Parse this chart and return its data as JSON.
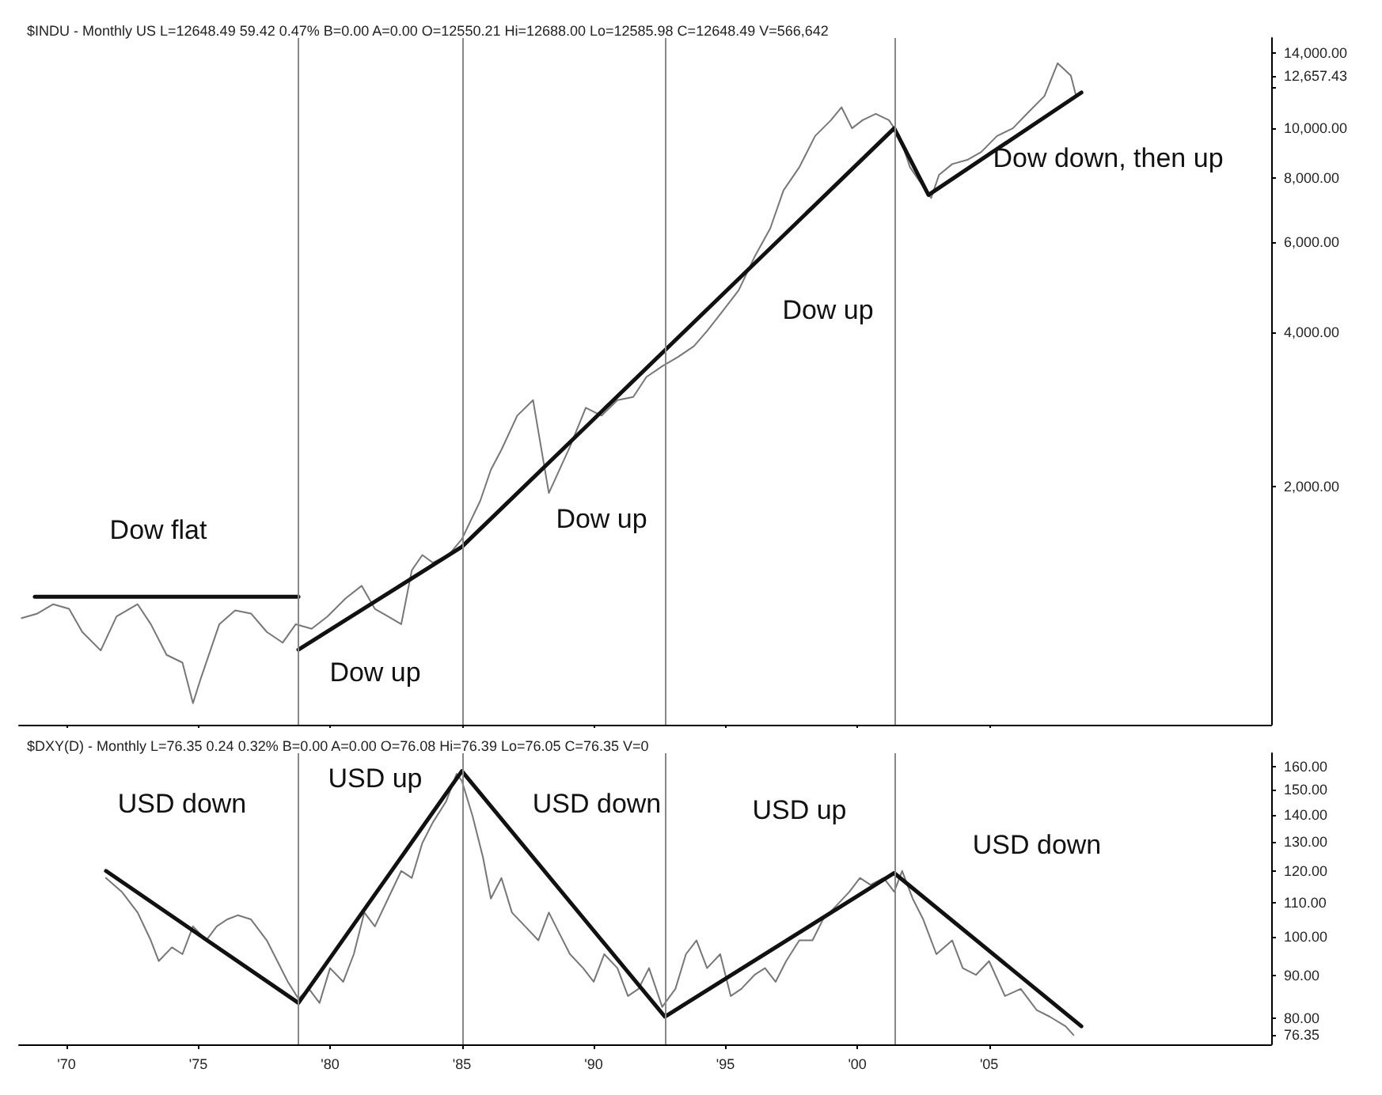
{
  "chart_data": [
    {
      "type": "line",
      "title": "$INDU - Monthly US L=12648.49 59.42 0.47% B=0.00 A=0.00 O=12550.21 Hi=12688.00 Lo=12585.98 C=12648.49 V=566,642",
      "log": "y",
      "grid": false,
      "marker": "none",
      "line_style": "solid",
      "tick_labels": "y",
      "xlim": [
        1968.2,
        2015.7
      ],
      "xticks": [
        {
          "value": 1970,
          "label": null
        },
        {
          "value": 1975,
          "label": null
        },
        {
          "value": 1980,
          "label": null
        },
        {
          "value": 1985,
          "label": null
        },
        {
          "value": 1990,
          "label": null
        },
        {
          "value": 1995,
          "label": null
        },
        {
          "value": 2000,
          "label": null
        },
        {
          "value": 2005,
          "label": null
        }
      ],
      "ylim": [
        687,
        15000
      ],
      "yticks": [
        {
          "value": 2000,
          "label": "2,000.00"
        },
        {
          "value": 4000,
          "label": "4,000.00"
        },
        {
          "value": 6000,
          "label": "6,000.00"
        },
        {
          "value": 8000,
          "label": "8,000.00"
        },
        {
          "value": 10000,
          "label": "10,000.00"
        },
        {
          "value": 12000,
          "label": null
        },
        {
          "value": 12657.43,
          "label": "12,657.43"
        },
        {
          "value": 14000,
          "label": "14,000.00"
        }
      ],
      "series": [
        {
          "color": "#777777",
          "x": [
            1968.3,
            1968.9,
            1969.5,
            1970.1,
            1970.6,
            1971.3,
            1971.9,
            1972.7,
            1973.2,
            1973.8,
            1974.4,
            1974.8,
            1975.1,
            1975.8,
            1976.4,
            1977.0,
            1977.6,
            1978.2,
            1978.7,
            1979.3,
            1979.9,
            1980.6,
            1981.2,
            1981.7,
            1982.2,
            1982.7,
            1983.1,
            1983.5,
            1983.9,
            1984.5,
            1985.0,
            1985.7,
            1986.1,
            1986.5,
            1987.1,
            1987.7,
            1987.9,
            1988.3,
            1988.7,
            1989.1,
            1989.7,
            1990.3,
            1990.9,
            1991.5,
            1992.0,
            1992.6,
            1993.2,
            1993.8,
            1994.3,
            1994.9,
            1995.5,
            1996.1,
            1996.7,
            1997.2,
            1997.8,
            1998.4,
            1999.0,
            1999.4,
            1999.8,
            2000.2,
            2000.7,
            2001.2,
            2001.6,
            2002.0,
            2002.4,
            2002.8,
            2003.1,
            2003.6,
            2004.2,
            2004.7,
            2005.3,
            2005.9,
            2006.5,
            2007.1,
            2007.6,
            2008.1,
            2008.3
          ],
          "values": [
            1109,
            1132,
            1180,
            1156,
            1042,
            959,
            1117,
            1180,
            1079,
            940,
            908,
            757,
            847,
            1079,
            1148,
            1132,
            1042,
            993,
            1079,
            1057,
            1117,
            1213,
            1282,
            1156,
            1117,
            1079,
            1374,
            1472,
            1422,
            1472,
            1581,
            1879,
            2158,
            2361,
            2752,
            2950,
            2566,
            1945,
            2158,
            2393,
            2851,
            2752,
            2950,
            2992,
            3273,
            3436,
            3583,
            3758,
            4024,
            4406,
            4832,
            5610,
            6383,
            7568,
            8395,
            9661,
            10370,
            10990,
            10000,
            10370,
            10670,
            10370,
            9661,
            8395,
            7832,
            7311,
            8112,
            8515,
            8690,
            8990,
            9661,
            10000,
            10760,
            11560,
            13390,
            12670,
            11560
          ]
        },
        {
          "type": "line",
          "color": "#111111",
          "x": [
            1968.8,
            1978.8
          ],
          "values": [
            1220,
            1220
          ]
        },
        {
          "type": "line",
          "color": "#111111",
          "x": [
            1978.8,
            1985.0,
            2001.4,
            2002.7,
            2008.5
          ],
          "values": [
            962,
            1527,
            10000,
            7413,
            11740
          ]
        }
      ],
      "ref_lines": [
        {
          "axis": "x",
          "value": 1978.8,
          "color": "#888888"
        },
        {
          "axis": "x",
          "value": 1985.0,
          "color": "#888888"
        },
        {
          "axis": "x",
          "value": 1992.7,
          "color": "#888888"
        },
        {
          "axis": "x",
          "value": 2001.4,
          "color": "#888888"
        }
      ],
      "annotations": [
        "Dow flat",
        "Dow up",
        "Dow up",
        "Dow up",
        "Dow down, then up"
      ]
    },
    {
      "type": "line",
      "title": "$DXY(D) - Monthly L=76.35 0.24 0.32% B=0.00 A=0.00 O=76.08 Hi=76.39 Lo=76.05 C=76.35 V=0",
      "log": "y",
      "grid": false,
      "marker": "none",
      "line_style": "solid",
      "xlim": [
        1968.2,
        2015.7
      ],
      "xticks": [
        {
          "value": 1970,
          "label": "'70"
        },
        {
          "value": 1975,
          "label": "'75"
        },
        {
          "value": 1980,
          "label": "'80"
        },
        {
          "value": 1985,
          "label": "'85"
        },
        {
          "value": 1990,
          "label": "'90"
        },
        {
          "value": 1995,
          "label": "'95"
        },
        {
          "value": 2000,
          "label": "'00"
        },
        {
          "value": 2005,
          "label": "'05"
        }
      ],
      "ylim": [
        74.4,
        166
      ],
      "yticks": [
        {
          "value": 76.35,
          "label": "76.35"
        },
        {
          "value": 80,
          "label": "80.00"
        },
        {
          "value": 90,
          "label": "90.00"
        },
        {
          "value": 100,
          "label": "100.00"
        },
        {
          "value": 110,
          "label": "110.00"
        },
        {
          "value": 120,
          "label": "120.00"
        },
        {
          "value": 130,
          "label": "130.00"
        },
        {
          "value": 140,
          "label": "140.00"
        },
        {
          "value": 150,
          "label": "150.00"
        },
        {
          "value": 160,
          "label": "160.00"
        }
      ],
      "series": [
        {
          "color": "#777777",
          "x": [
            1971.5,
            1972.1,
            1972.7,
            1973.2,
            1973.5,
            1974.0,
            1974.4,
            1974.8,
            1975.3,
            1975.7,
            1976.1,
            1976.5,
            1977.0,
            1977.6,
            1978.0,
            1978.4,
            1978.8,
            1979.2,
            1979.6,
            1980.0,
            1980.5,
            1980.9,
            1981.3,
            1981.7,
            1982.2,
            1982.7,
            1983.1,
            1983.5,
            1983.9,
            1984.4,
            1984.8,
            1985.0,
            1985.4,
            1985.8,
            1986.1,
            1986.5,
            1986.9,
            1987.4,
            1987.9,
            1988.3,
            1988.7,
            1989.1,
            1989.6,
            1990.0,
            1990.4,
            1990.9,
            1991.3,
            1991.7,
            1992.1,
            1992.6,
            1993.1,
            1993.5,
            1993.9,
            1994.3,
            1994.8,
            1995.2,
            1995.6,
            1996.1,
            1996.5,
            1996.9,
            1997.3,
            1997.8,
            1998.3,
            1998.7,
            1999.2,
            1999.7,
            2000.1,
            2000.5,
            2001.0,
            2001.4,
            2001.7,
            2002.1,
            2002.5,
            2003.0,
            2003.6,
            2004.0,
            2004.5,
            2005.0,
            2005.6,
            2006.2,
            2006.8,
            2007.3,
            2007.9,
            2008.2
          ],
          "values": [
            117.7,
            113.3,
            107.0,
            99.1,
            93.6,
            97.2,
            95.4,
            103.0,
            99.1,
            103.0,
            105.0,
            106.2,
            105.0,
            99.1,
            93.6,
            88.4,
            84.4,
            86.7,
            83.4,
            91.8,
            88.4,
            95.4,
            107.0,
            103.0,
            111.2,
            120.0,
            117.7,
            129.6,
            137.2,
            145.3,
            156.8,
            153.8,
            139.8,
            124.6,
            111.2,
            117.7,
            107.0,
            103.0,
            99.1,
            107.0,
            101.0,
            95.4,
            91.8,
            88.4,
            95.4,
            91.8,
            85.0,
            86.7,
            91.8,
            82.5,
            86.7,
            95.4,
            99.1,
            91.8,
            95.4,
            85.0,
            86.7,
            90.1,
            91.8,
            88.4,
            93.6,
            99.1,
            99.1,
            105.0,
            109.0,
            113.3,
            117.7,
            115.5,
            117.7,
            113.3,
            120.0,
            111.2,
            105.0,
            95.4,
            99.1,
            91.8,
            90.1,
            93.6,
            85.0,
            86.7,
            81.8,
            80.3,
            78.2,
            76.35
          ]
        },
        {
          "type": "line",
          "color": "#111111",
          "x": [
            1971.5,
            1978.8,
            1985.0,
            1992.7,
            2001.4,
            2008.5
          ],
          "values": [
            120,
            83.4,
            158,
            80.3,
            119.3,
            78.2
          ]
        }
      ],
      "ref_lines": [
        {
          "axis": "x",
          "value": 1978.8,
          "color": "#888888"
        },
        {
          "axis": "x",
          "value": 1985.0,
          "color": "#888888"
        },
        {
          "axis": "x",
          "value": 1992.7,
          "color": "#888888"
        },
        {
          "axis": "x",
          "value": 2001.4,
          "color": "#888888"
        }
      ],
      "annotations": [
        "USD down",
        "USD up",
        "USD down",
        "USD up",
        "USD down"
      ]
    }
  ]
}
